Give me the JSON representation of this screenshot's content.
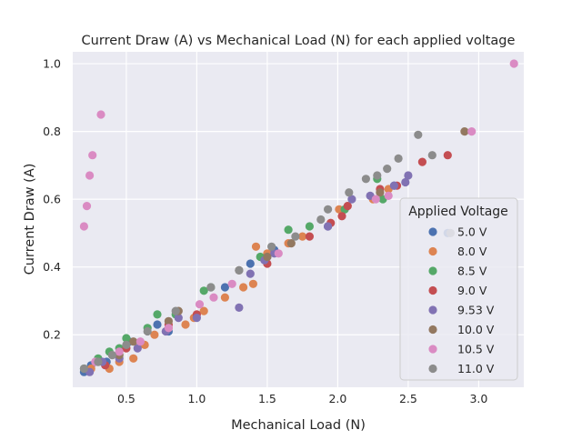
{
  "chart_data": {
    "type": "scatter",
    "title": "Current Draw (A) vs Mechanical Load (N) for each applied voltage",
    "xlabel": "Mechanical Load (N)",
    "ylabel": "Current Draw (A)",
    "xlim": [
      0.12,
      3.32
    ],
    "ylim": [
      0.045,
      1.035
    ],
    "xticks": [
      0.5,
      1.0,
      1.5,
      2.0,
      2.5,
      3.0
    ],
    "xtick_labels": [
      "0.5",
      "1.0",
      "1.5",
      "2.0",
      "2.5",
      "3.0"
    ],
    "yticks": [
      0.2,
      0.4,
      0.6,
      0.8,
      1.0
    ],
    "ytick_labels": [
      "0.2",
      "0.4",
      "0.6",
      "0.8",
      "1.0"
    ],
    "grid": true,
    "background": "#eaeaf2",
    "legend_title": "Applied Voltage",
    "legend_position": "right",
    "series": [
      {
        "name": "5.0 V",
        "color": "#4c72b0",
        "points": [
          [
            0.2,
            0.09
          ],
          [
            0.25,
            0.11
          ],
          [
            0.36,
            0.12
          ],
          [
            0.52,
            0.18
          ],
          [
            0.72,
            0.23
          ],
          [
            0.8,
            0.21
          ],
          [
            1.2,
            0.34
          ],
          [
            1.38,
            0.41
          ],
          [
            1.5,
            0.43
          ],
          [
            1.55,
            0.45
          ],
          [
            1.93,
            0.52
          ],
          [
            2.4,
            0.64
          ],
          [
            2.78,
            0.5
          ]
        ]
      },
      {
        "name": "8.0 V",
        "color": "#dd8452",
        "points": [
          [
            0.25,
            0.1
          ],
          [
            0.38,
            0.1
          ],
          [
            0.45,
            0.12
          ],
          [
            0.55,
            0.13
          ],
          [
            0.63,
            0.17
          ],
          [
            0.7,
            0.2
          ],
          [
            0.8,
            0.22
          ],
          [
            0.92,
            0.23
          ],
          [
            0.98,
            0.25
          ],
          [
            1.05,
            0.27
          ],
          [
            1.2,
            0.31
          ],
          [
            1.33,
            0.34
          ],
          [
            1.4,
            0.35
          ],
          [
            1.42,
            0.46
          ],
          [
            1.5,
            0.44
          ],
          [
            1.65,
            0.47
          ],
          [
            1.75,
            0.49
          ],
          [
            2.01,
            0.57
          ],
          [
            2.25,
            0.6
          ],
          [
            2.36,
            0.63
          ]
        ]
      },
      {
        "name": "8.5 V",
        "color": "#55a868",
        "points": [
          [
            0.2,
            0.1
          ],
          [
            0.3,
            0.13
          ],
          [
            0.38,
            0.15
          ],
          [
            0.45,
            0.16
          ],
          [
            0.5,
            0.19
          ],
          [
            0.65,
            0.22
          ],
          [
            0.72,
            0.26
          ],
          [
            0.85,
            0.26
          ],
          [
            1.05,
            0.33
          ],
          [
            1.1,
            0.34
          ],
          [
            1.45,
            0.43
          ],
          [
            1.65,
            0.51
          ],
          [
            1.8,
            0.52
          ],
          [
            2.05,
            0.57
          ],
          [
            2.28,
            0.66
          ],
          [
            2.32,
            0.6
          ]
        ]
      },
      {
        "name": "9.0 V",
        "color": "#c44e52",
        "points": [
          [
            0.35,
            0.11
          ],
          [
            0.5,
            0.16
          ],
          [
            0.8,
            0.23
          ],
          [
            1.0,
            0.26
          ],
          [
            1.5,
            0.41
          ],
          [
            1.8,
            0.49
          ],
          [
            1.95,
            0.53
          ],
          [
            2.03,
            0.55
          ],
          [
            2.07,
            0.58
          ],
          [
            2.3,
            0.63
          ],
          [
            2.42,
            0.64
          ],
          [
            2.6,
            0.71
          ],
          [
            2.78,
            0.73
          ]
        ]
      },
      {
        "name": "9.53 V",
        "color": "#8172b3",
        "points": [
          [
            0.24,
            0.09
          ],
          [
            0.33,
            0.12
          ],
          [
            0.45,
            0.13
          ],
          [
            0.58,
            0.16
          ],
          [
            0.78,
            0.21
          ],
          [
            0.87,
            0.25
          ],
          [
            1.0,
            0.25
          ],
          [
            1.3,
            0.28
          ],
          [
            1.38,
            0.38
          ],
          [
            1.48,
            0.42
          ],
          [
            1.55,
            0.44
          ],
          [
            1.93,
            0.52
          ],
          [
            2.1,
            0.6
          ],
          [
            2.23,
            0.61
          ],
          [
            2.4,
            0.64
          ],
          [
            2.48,
            0.65
          ],
          [
            2.5,
            0.67
          ]
        ]
      },
      {
        "name": "10.0 V",
        "color": "#937860",
        "points": [
          [
            0.3,
            0.12
          ],
          [
            0.45,
            0.14
          ],
          [
            0.55,
            0.18
          ],
          [
            0.8,
            0.24
          ],
          [
            0.87,
            0.27
          ],
          [
            1.3,
            0.39
          ],
          [
            1.5,
            0.43
          ],
          [
            1.67,
            0.47
          ],
          [
            2.3,
            0.62
          ],
          [
            2.9,
            0.8
          ]
        ]
      },
      {
        "name": "10.5 V",
        "color": "#da8bc3",
        "points": [
          [
            0.2,
            0.52
          ],
          [
            0.22,
            0.58
          ],
          [
            0.24,
            0.67
          ],
          [
            0.26,
            0.73
          ],
          [
            0.32,
            0.85
          ],
          [
            0.28,
            0.12
          ],
          [
            0.45,
            0.15
          ],
          [
            0.6,
            0.18
          ],
          [
            0.8,
            0.22
          ],
          [
            1.02,
            0.29
          ],
          [
            1.12,
            0.31
          ],
          [
            1.25,
            0.35
          ],
          [
            1.58,
            0.44
          ],
          [
            2.27,
            0.6
          ],
          [
            2.36,
            0.61
          ],
          [
            2.95,
            0.8
          ],
          [
            3.25,
            1.0
          ]
        ]
      },
      {
        "name": "11.0 V",
        "color": "#8c8c8c",
        "points": [
          [
            0.2,
            0.1
          ],
          [
            0.3,
            0.12
          ],
          [
            0.4,
            0.14
          ],
          [
            0.5,
            0.17
          ],
          [
            0.65,
            0.21
          ],
          [
            0.85,
            0.27
          ],
          [
            1.1,
            0.34
          ],
          [
            1.3,
            0.39
          ],
          [
            1.53,
            0.46
          ],
          [
            1.7,
            0.49
          ],
          [
            1.88,
            0.54
          ],
          [
            1.93,
            0.57
          ],
          [
            2.08,
            0.62
          ],
          [
            2.2,
            0.66
          ],
          [
            2.28,
            0.67
          ],
          [
            2.35,
            0.69
          ],
          [
            2.43,
            0.72
          ],
          [
            2.57,
            0.79
          ],
          [
            2.67,
            0.73
          ],
          [
            2.8,
            0.5
          ]
        ]
      }
    ]
  }
}
